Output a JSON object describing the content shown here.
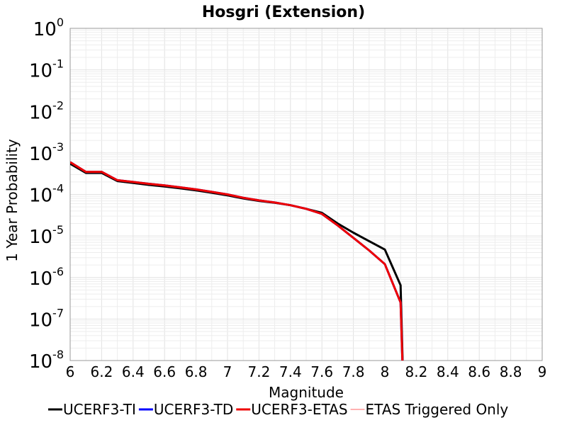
{
  "chart_data": {
    "type": "line",
    "title": "Hosgri (Extension)",
    "xlabel": "Magnitude",
    "ylabel": "1 Year Probability",
    "xlim": [
      6,
      9
    ],
    "ylim": [
      1e-08,
      1
    ],
    "y_scale": "log",
    "grid": true,
    "legend_position": "bottom",
    "x_ticks": [
      "6",
      "6.2",
      "6.4",
      "6.6",
      "6.8",
      "7",
      "7.2",
      "7.4",
      "7.6",
      "7.8",
      "8",
      "8.2",
      "8.4",
      "8.6",
      "8.8",
      "9"
    ],
    "y_ticks": [
      {
        "base": "10",
        "exp": "0"
      },
      {
        "base": "10",
        "exp": "-1"
      },
      {
        "base": "10",
        "exp": "-2"
      },
      {
        "base": "10",
        "exp": "-3"
      },
      {
        "base": "10",
        "exp": "-4"
      },
      {
        "base": "10",
        "exp": "-5"
      },
      {
        "base": "10",
        "exp": "-6"
      },
      {
        "base": "10",
        "exp": "-7"
      },
      {
        "base": "10",
        "exp": "-8"
      }
    ],
    "series": [
      {
        "name": "UCERF3-TI",
        "color": "#000000",
        "x": [
          6.0,
          6.1,
          6.2,
          6.3,
          6.4,
          6.5,
          6.6,
          6.7,
          6.8,
          6.9,
          7.0,
          7.1,
          7.2,
          7.3,
          7.4,
          7.5,
          7.6,
          7.7,
          7.8,
          7.9,
          8.0,
          8.1,
          8.12
        ],
        "y": [
          0.00055,
          0.00033,
          0.00033,
          0.00021,
          0.00019,
          0.00017,
          0.000155,
          0.00014,
          0.000125,
          0.00011,
          9.5e-05,
          8e-05,
          7e-05,
          6.3e-05,
          5.5e-05,
          4.5e-05,
          3.6e-05,
          2e-05,
          1.2e-05,
          7.5e-06,
          4.7e-06,
          6.5e-07,
          1e-09
        ]
      },
      {
        "name": "UCERF3-TD",
        "color": "#0000ff",
        "x": [
          6.0,
          6.1,
          6.2,
          6.3,
          6.4,
          6.5,
          6.6,
          6.7,
          6.8,
          6.9,
          7.0,
          7.1,
          7.2,
          7.3,
          7.4,
          7.5,
          7.6,
          7.7,
          7.8,
          7.9,
          8.0,
          8.1,
          8.12
        ],
        "y": [
          0.0006,
          0.00035,
          0.00035,
          0.00022,
          0.0002,
          0.00018,
          0.000165,
          0.000148,
          0.000132,
          0.000115,
          0.0001,
          8.3e-05,
          7.2e-05,
          6.4e-05,
          5.5e-05,
          4.5e-05,
          3.4e-05,
          1.8e-05,
          9e-06,
          4.5e-06,
          2.1e-06,
          2.5e-07,
          1e-09
        ]
      },
      {
        "name": "UCERF3-ETAS",
        "color": "#ee0000",
        "x": [
          6.0,
          6.1,
          6.2,
          6.3,
          6.4,
          6.5,
          6.6,
          6.7,
          6.8,
          6.9,
          7.0,
          7.1,
          7.2,
          7.3,
          7.4,
          7.5,
          7.6,
          7.7,
          7.8,
          7.9,
          8.0,
          8.1,
          8.12
        ],
        "y": [
          0.0006,
          0.00035,
          0.00035,
          0.00022,
          0.0002,
          0.00018,
          0.000165,
          0.000148,
          0.000132,
          0.000115,
          0.0001,
          8.3e-05,
          7.2e-05,
          6.4e-05,
          5.5e-05,
          4.5e-05,
          3.4e-05,
          1.8e-05,
          9e-06,
          4.5e-06,
          2.1e-06,
          2.5e-07,
          1e-09
        ]
      },
      {
        "name": "ETAS Triggered Only",
        "color": "#ff6666",
        "x": [],
        "y": []
      }
    ],
    "legend": [
      {
        "label": "UCERF3-TI",
        "color": "#000000",
        "width": 3
      },
      {
        "label": "UCERF3-TD",
        "color": "#0000ff",
        "width": 3
      },
      {
        "label": "UCERF3-ETAS",
        "color": "#ee0000",
        "width": 3
      },
      {
        "label": "ETAS Triggered Only",
        "color": "#ff6666",
        "width": 1
      }
    ]
  }
}
